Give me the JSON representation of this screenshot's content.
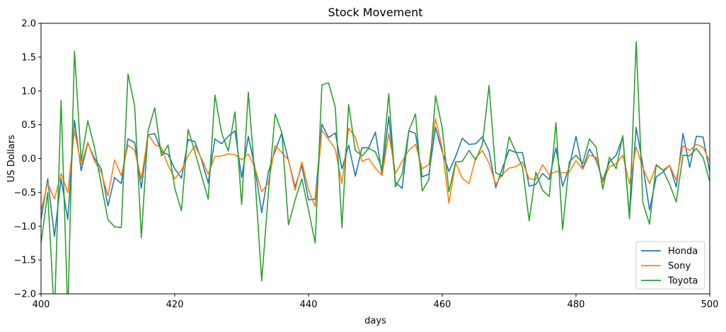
{
  "chart_data": {
    "type": "line",
    "title": "Stock Movement",
    "xlabel": "days",
    "ylabel": "US Dollars",
    "xlim": [
      400,
      500
    ],
    "ylim": [
      -2.0,
      2.0
    ],
    "xticks": [
      400,
      420,
      440,
      460,
      480,
      500
    ],
    "yticks": [
      -2.0,
      -1.5,
      -1.0,
      -0.5,
      0.0,
      0.5,
      1.0,
      1.5,
      2.0
    ],
    "yticklabels": [
      "−2.0",
      "−1.5",
      "−1.0",
      "−0.5",
      "0.0",
      "0.5",
      "1.0",
      "1.5",
      "2.0"
    ],
    "grid": false,
    "legend_position": "bottom-right",
    "x": [
      400,
      401,
      402,
      403,
      404,
      405,
      406,
      407,
      408,
      409,
      410,
      411,
      412,
      413,
      414,
      415,
      416,
      417,
      418,
      419,
      420,
      421,
      422,
      423,
      424,
      425,
      426,
      427,
      428,
      429,
      430,
      431,
      432,
      433,
      434,
      435,
      436,
      437,
      438,
      439,
      440,
      441,
      442,
      443,
      444,
      445,
      446,
      447,
      448,
      449,
      450,
      451,
      452,
      453,
      454,
      455,
      456,
      457,
      458,
      459,
      460,
      461,
      462,
      463,
      464,
      465,
      466,
      467,
      468,
      469,
      470,
      471,
      472,
      473,
      474,
      475,
      476,
      477,
      478,
      479,
      480,
      481,
      482,
      483,
      484,
      485,
      486,
      487,
      488,
      489,
      490,
      491,
      492,
      493,
      494,
      495,
      496,
      497,
      498,
      499,
      500
    ],
    "series": [
      {
        "name": "Honda",
        "color": "#1f77b4",
        "values": [
          -0.9,
          -0.3,
          -1.15,
          -0.3,
          -0.9,
          0.57,
          -0.18,
          0.23,
          0.0,
          -0.15,
          -0.7,
          -0.28,
          -0.37,
          0.29,
          0.24,
          -0.44,
          0.35,
          0.37,
          0.1,
          0.06,
          -0.15,
          -0.29,
          0.28,
          0.25,
          -0.02,
          -0.36,
          0.29,
          0.22,
          0.33,
          0.41,
          -0.28,
          0.33,
          -0.14,
          -0.8,
          -0.2,
          0.11,
          0.38,
          -0.03,
          -0.42,
          -0.1,
          -0.61,
          -0.6,
          0.51,
          0.31,
          0.38,
          -0.15,
          0.2,
          -0.26,
          0.16,
          0.16,
          0.39,
          -0.24,
          0.62,
          -0.35,
          -0.44,
          0.41,
          0.37,
          -0.27,
          -0.23,
          0.46,
          0.1,
          -0.19,
          0.03,
          0.3,
          0.21,
          0.22,
          0.32,
          0.11,
          -0.43,
          -0.14,
          0.13,
          0.09,
          0.09,
          -0.41,
          -0.38,
          -0.22,
          -0.31,
          0.16,
          -0.41,
          -0.12,
          0.33,
          -0.15,
          0.14,
          -0.02,
          -0.32,
          -0.05,
          0.05,
          0.32,
          -0.86,
          0.46,
          -0.1,
          -0.76,
          -0.27,
          -0.2,
          -0.1,
          -0.42,
          0.37,
          -0.13,
          0.33,
          0.32,
          -0.2
        ]
      },
      {
        "name": "Sony",
        "color": "#ff7f0e",
        "values": [
          -0.77,
          -0.36,
          -0.6,
          -0.22,
          -0.5,
          0.41,
          -0.09,
          0.24,
          -0.04,
          -0.2,
          -0.55,
          -0.02,
          -0.25,
          0.2,
          0.12,
          -0.3,
          0.36,
          0.21,
          0.16,
          -0.1,
          -0.3,
          -0.17,
          0.04,
          0.19,
          0.0,
          -0.23,
          0.03,
          0.04,
          0.07,
          0.06,
          -0.02,
          0.07,
          -0.14,
          -0.49,
          -0.36,
          0.19,
          0.09,
          -0.02,
          -0.47,
          -0.05,
          -0.46,
          -0.71,
          0.42,
          0.28,
          0.14,
          -0.37,
          0.45,
          0.32,
          -0.04,
          0.0,
          -0.14,
          -0.25,
          0.37,
          -0.22,
          -0.04,
          0.12,
          0.21,
          -0.15,
          -0.09,
          0.59,
          0.15,
          -0.66,
          -0.06,
          -0.29,
          -0.37,
          0.01,
          0.12,
          -0.07,
          -0.38,
          -0.23,
          -0.14,
          -0.12,
          -0.05,
          -0.3,
          -0.31,
          -0.09,
          -0.24,
          -0.19,
          -0.21,
          -0.2,
          -0.03,
          -0.16,
          0.05,
          0.02,
          -0.35,
          -0.12,
          -0.08,
          0.05,
          -0.37,
          0.17,
          -0.13,
          -0.37,
          -0.1,
          -0.17,
          -0.1,
          -0.32,
          0.19,
          0.12,
          0.21,
          0.17,
          -0.04
        ]
      },
      {
        "name": "Toyota",
        "color": "#2ca02c",
        "values": [
          -1.25,
          -0.5,
          -2.35,
          0.86,
          -2.3,
          1.59,
          -0.03,
          0.56,
          0.16,
          -0.38,
          -0.9,
          -1.01,
          -1.02,
          1.25,
          0.78,
          -1.17,
          0.41,
          0.75,
          0.04,
          0.2,
          -0.44,
          -0.77,
          0.43,
          0.1,
          -0.25,
          -0.6,
          0.94,
          0.38,
          0.11,
          0.69,
          -0.68,
          0.98,
          -0.29,
          -1.81,
          -0.5,
          0.66,
          0.39,
          -0.98,
          -0.61,
          -0.3,
          -0.76,
          -1.25,
          1.09,
          1.12,
          0.76,
          -1.02,
          0.8,
          0.12,
          0.04,
          0.15,
          0.1,
          -0.15,
          0.96,
          -0.42,
          -0.23,
          0.41,
          0.66,
          -0.48,
          -0.31,
          0.93,
          0.45,
          -0.49,
          -0.05,
          -0.04,
          0.12,
          -0.02,
          0.21,
          1.08,
          -0.21,
          -0.26,
          0.32,
          0.1,
          -0.13,
          -0.92,
          -0.2,
          -0.47,
          -0.56,
          0.53,
          -1.05,
          -0.05,
          0.05,
          -0.07,
          0.29,
          0.17,
          -0.45,
          0.02,
          -0.15,
          0.34,
          -0.89,
          1.73,
          -0.65,
          -0.97,
          -0.09,
          -0.17,
          -0.38,
          -0.64,
          0.05,
          0.04,
          0.15,
          0.02,
          -0.34
        ]
      }
    ]
  }
}
